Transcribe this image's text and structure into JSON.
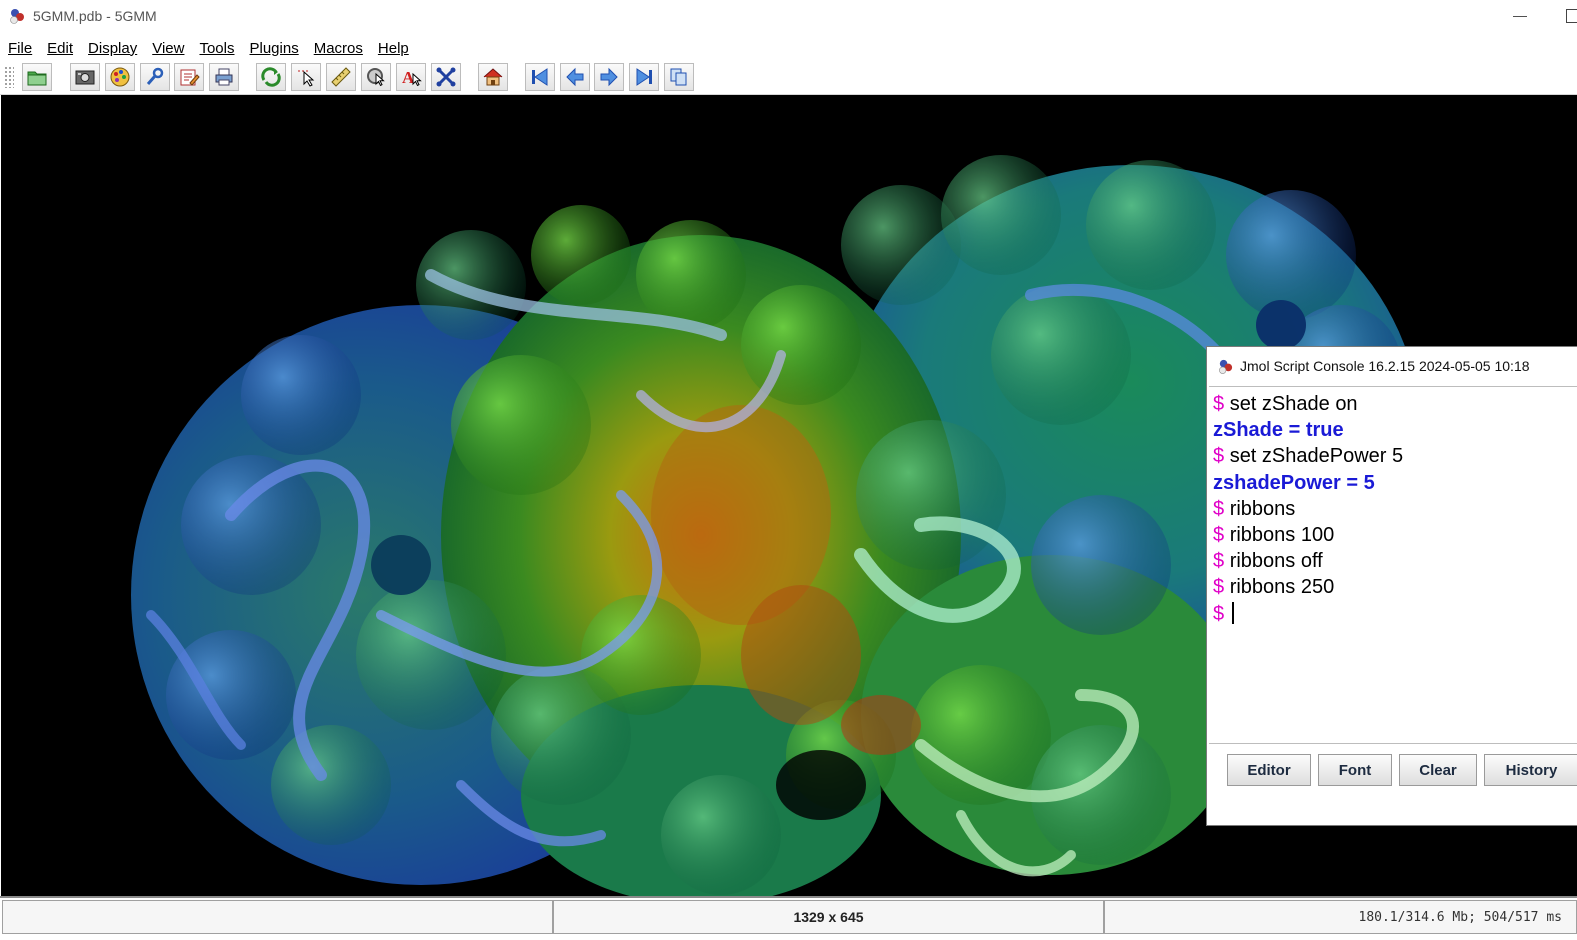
{
  "window": {
    "title": "5GMM.pdb - 5GMM",
    "minimize_glyph": "—"
  },
  "menu": [
    "File",
    "Edit",
    "Display",
    "View",
    "Tools",
    "Plugins",
    "Macros",
    "Help"
  ],
  "toolbar": {
    "buttons": [
      {
        "name": "open-file",
        "icon": "folder-icon"
      },
      {
        "name": "export-image",
        "icon": "camera-icon"
      },
      {
        "name": "render",
        "icon": "palette-icon"
      },
      {
        "name": "preferences",
        "icon": "wrench-icon"
      },
      {
        "name": "edit-script",
        "icon": "pencil-icon"
      },
      {
        "name": "print",
        "icon": "printer-icon"
      },
      {
        "name": "rotate",
        "icon": "rotate-icon"
      },
      {
        "name": "pick",
        "icon": "pointer-icon"
      },
      {
        "name": "measure",
        "icon": "ruler-icon"
      },
      {
        "name": "select",
        "icon": "select-cursor-icon"
      },
      {
        "name": "labels",
        "icon": "label-a-icon"
      },
      {
        "name": "atom-distance",
        "icon": "cross-atoms-icon"
      },
      {
        "name": "home",
        "icon": "home-icon"
      },
      {
        "name": "first-frame",
        "icon": "first-frame-icon"
      },
      {
        "name": "previous-frame",
        "icon": "previous-frame-icon"
      },
      {
        "name": "next-frame",
        "icon": "next-frame-icon"
      },
      {
        "name": "last-frame",
        "icon": "last-frame-icon"
      },
      {
        "name": "animation",
        "icon": "copy-frames-icon"
      }
    ]
  },
  "status": {
    "left": "",
    "size": "1329 x 645",
    "memory": "180.1/314.6 Mb; 504/517 ms"
  },
  "console": {
    "title": "Jmol Script Console 16.2.15  2024-05-05 10:18",
    "lines": [
      {
        "type": "cmd",
        "prompt": "$",
        "text": "set zShade on"
      },
      {
        "type": "resp",
        "prompt": "",
        "text": "zShade = true"
      },
      {
        "type": "cmd",
        "prompt": "$",
        "text": "set zShadePower 5"
      },
      {
        "type": "resp",
        "prompt": "",
        "text": "zshadePower = 5"
      },
      {
        "type": "cmd",
        "prompt": "$",
        "text": "ribbons"
      },
      {
        "type": "cmd",
        "prompt": "$",
        "text": "ribbons 100"
      },
      {
        "type": "cmd",
        "prompt": "$",
        "text": "ribbons off"
      },
      {
        "type": "cmd",
        "prompt": "$",
        "text": "ribbons 250"
      },
      {
        "type": "input",
        "prompt": "$",
        "text": ""
      }
    ],
    "buttons": {
      "editor": "Editor",
      "font": "Font",
      "clear": "Clear",
      "history": "History"
    }
  },
  "colors": {
    "prompt": "#e000c8",
    "response": "#1a1ad6",
    "viewer_background": "#000000"
  }
}
